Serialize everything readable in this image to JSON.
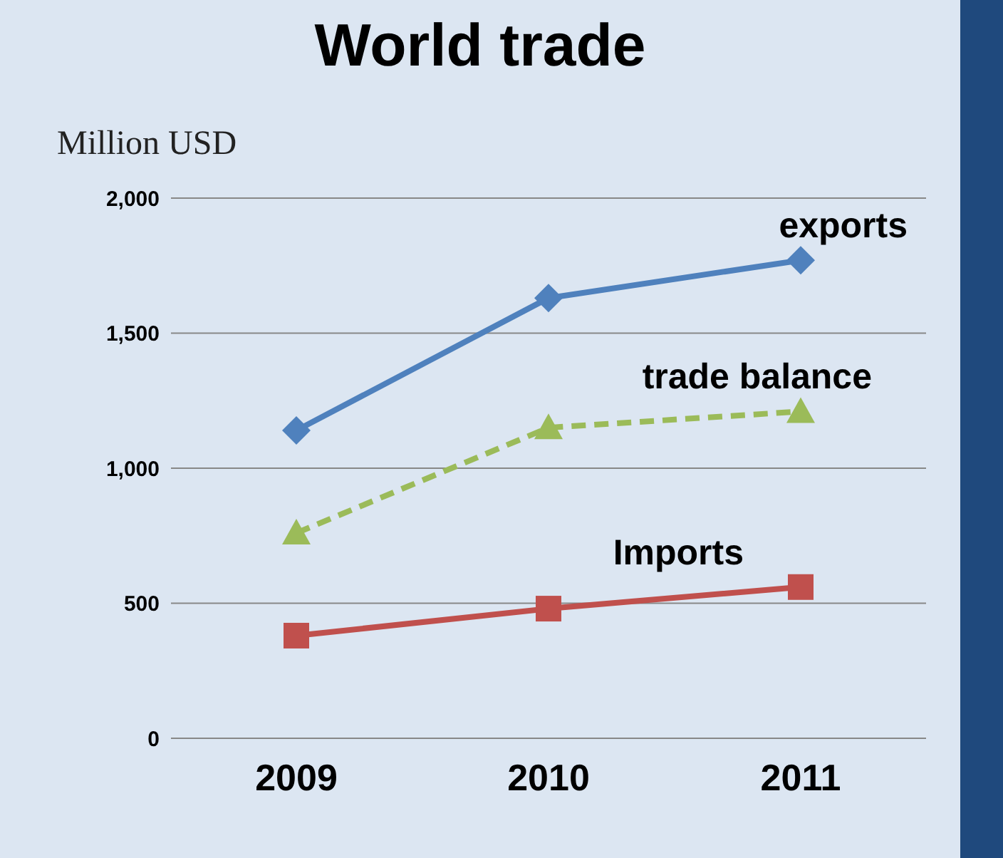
{
  "chart_data": {
    "type": "line",
    "title": "World trade",
    "ylabel": "Million USD",
    "categories": [
      "2009",
      "2010",
      "2011"
    ],
    "series": [
      {
        "name": "exports",
        "color": "#4f81bd",
        "values": [
          1140,
          1630,
          1770
        ],
        "marker": "diamond",
        "line_style": "solid"
      },
      {
        "name": "trade balance",
        "color": "#9bbb59",
        "values": [
          760,
          1150,
          1210
        ],
        "marker": "triangle",
        "line_style": "dashed"
      },
      {
        "name": "Imports",
        "color": "#c0504d",
        "values": [
          380,
          480,
          560
        ],
        "marker": "square",
        "line_style": "solid"
      }
    ],
    "ylim": [
      0,
      2000
    ],
    "yticks": [
      {
        "value": 0,
        "label": "0"
      },
      {
        "value": 500,
        "label": "500"
      },
      {
        "value": 1000,
        "label": "1,000"
      },
      {
        "value": 1500,
        "label": "1,500"
      },
      {
        "value": 2000,
        "label": "2,000"
      }
    ],
    "grid": "y",
    "legend": false
  }
}
